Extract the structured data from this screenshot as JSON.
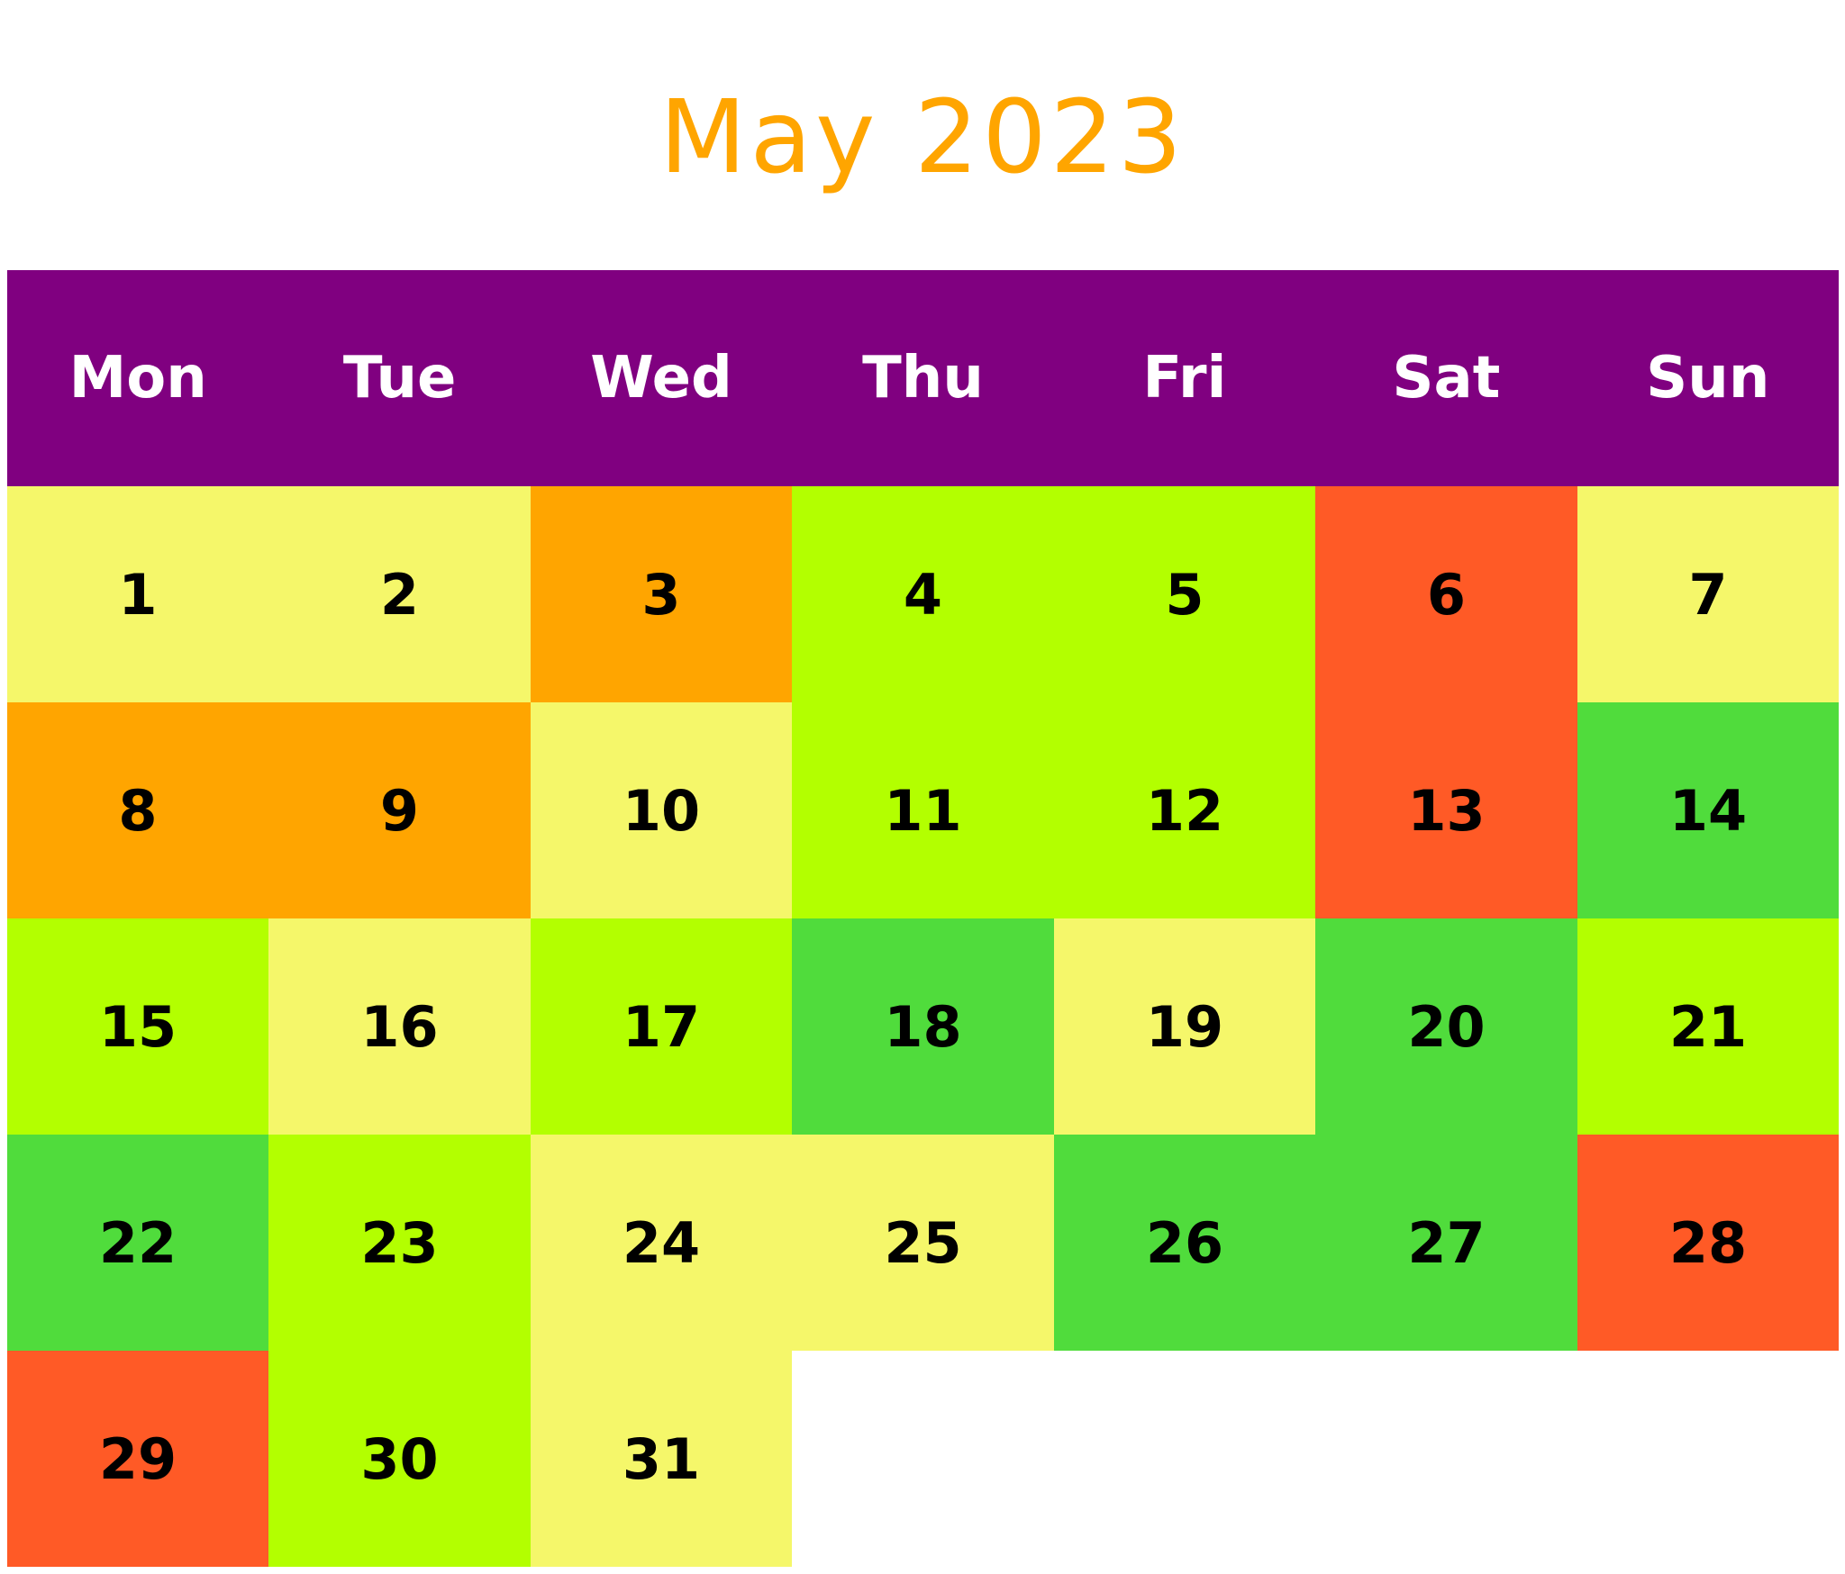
{
  "title": "May 2023",
  "colors": {
    "title": "#FFA500",
    "header_bg": "#800080",
    "header_text": "#FFFFFF",
    "day_text": "#000000",
    "background": "#FFFFFF"
  },
  "weekdays": [
    "Mon",
    "Tue",
    "Wed",
    "Thu",
    "Fri",
    "Sat",
    "Sun"
  ],
  "chart_data": {
    "type": "heatmap",
    "title": "May 2023",
    "x_categories": [
      "Mon",
      "Tue",
      "Wed",
      "Thu",
      "Fri",
      "Sat",
      "Sun"
    ],
    "first_weekday_index": 0,
    "days": [
      {
        "day": "1",
        "color": "#F5F76A"
      },
      {
        "day": "2",
        "color": "#F5F76A"
      },
      {
        "day": "3",
        "color": "#FFA500"
      },
      {
        "day": "4",
        "color": "#B3FF00"
      },
      {
        "day": "5",
        "color": "#B3FF00"
      },
      {
        "day": "6",
        "color": "#FF5A26"
      },
      {
        "day": "7",
        "color": "#F5F76A"
      },
      {
        "day": "8",
        "color": "#FFA500"
      },
      {
        "day": "9",
        "color": "#FFA500"
      },
      {
        "day": "10",
        "color": "#F5F76A"
      },
      {
        "day": "11",
        "color": "#B3FF00"
      },
      {
        "day": "12",
        "color": "#B3FF00"
      },
      {
        "day": "13",
        "color": "#FF5A26"
      },
      {
        "day": "14",
        "color": "#50DC3C"
      },
      {
        "day": "15",
        "color": "#B3FF00"
      },
      {
        "day": "16",
        "color": "#F5F76A"
      },
      {
        "day": "17",
        "color": "#B3FF00"
      },
      {
        "day": "18",
        "color": "#50DC3C"
      },
      {
        "day": "19",
        "color": "#F5F76A"
      },
      {
        "day": "20",
        "color": "#50DC3C"
      },
      {
        "day": "21",
        "color": "#B3FF00"
      },
      {
        "day": "22",
        "color": "#50DC3C"
      },
      {
        "day": "23",
        "color": "#B3FF00"
      },
      {
        "day": "24",
        "color": "#F5F76A"
      },
      {
        "day": "25",
        "color": "#F5F76A"
      },
      {
        "day": "26",
        "color": "#50DC3C"
      },
      {
        "day": "27",
        "color": "#50DC3C"
      },
      {
        "day": "28",
        "color": "#FF5A26"
      },
      {
        "day": "29",
        "color": "#FF5A26"
      },
      {
        "day": "30",
        "color": "#B3FF00"
      },
      {
        "day": "31",
        "color": "#F5F76A"
      }
    ]
  }
}
